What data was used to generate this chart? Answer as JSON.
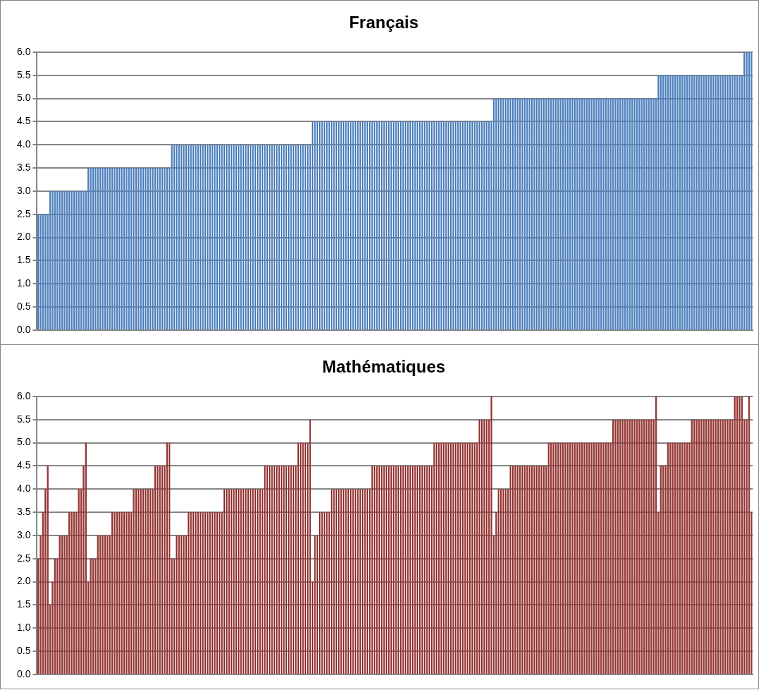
{
  "chart_data": [
    {
      "type": "bar",
      "title": "Français",
      "color": "#4f81bd",
      "grid": "y",
      "tick_labels": "y",
      "ylim": [
        0,
        6
      ],
      "yticks": [
        {
          "value": 0,
          "label": "0.0"
        },
        {
          "value": 0.5,
          "label": "0.5"
        },
        {
          "value": 1,
          "label": "1.0"
        },
        {
          "value": 1.5,
          "label": "1.5"
        },
        {
          "value": 2,
          "label": "2.0"
        },
        {
          "value": 2.5,
          "label": "2.5"
        },
        {
          "value": 3,
          "label": "3.0"
        },
        {
          "value": 3.5,
          "label": "3.5"
        },
        {
          "value": 4,
          "label": "4.0"
        },
        {
          "value": 4.5,
          "label": "4.5"
        },
        {
          "value": 5,
          "label": "5.0"
        },
        {
          "value": 5.5,
          "label": "5.5"
        },
        {
          "value": 6,
          "label": "6.0"
        }
      ],
      "categories": [
        null,
        null,
        null,
        null,
        null,
        null,
        null,
        null,
        null,
        null,
        null,
        null,
        null,
        null,
        null,
        null,
        null,
        null,
        null,
        null,
        null,
        null,
        null,
        null,
        null,
        null,
        null,
        null,
        null,
        null,
        null,
        null,
        null,
        null,
        null,
        null,
        null,
        null,
        null,
        null,
        null,
        null,
        null,
        null,
        null,
        null,
        null,
        null,
        null,
        null,
        null,
        null,
        null,
        null,
        null,
        null,
        null,
        null,
        null,
        null,
        null,
        null,
        null,
        null,
        null,
        null,
        null,
        null,
        null,
        null,
        null,
        null,
        null,
        null,
        null,
        null,
        null,
        null,
        null,
        null,
        null,
        null,
        null,
        null,
        null,
        null,
        null,
        null,
        null,
        null,
        null,
        null,
        null,
        null,
        null,
        null,
        null,
        null,
        null,
        null,
        null,
        null,
        null,
        null,
        null,
        null,
        null,
        null,
        null,
        null,
        null,
        null,
        null,
        null,
        null,
        null,
        null,
        null,
        null,
        null,
        null,
        null,
        null,
        null,
        null,
        null,
        null,
        null,
        null,
        null,
        null,
        null,
        null,
        null,
        null,
        null,
        null,
        null,
        null,
        null,
        null,
        null,
        null,
        null,
        null,
        null,
        null,
        null,
        null,
        null,
        null,
        null,
        null,
        null,
        null,
        null,
        null,
        null,
        null,
        null,
        null,
        null,
        null,
        null,
        null,
        null,
        null,
        null,
        null,
        null,
        null,
        null,
        null,
        null,
        null,
        null,
        null,
        null,
        null,
        null,
        null,
        null,
        null,
        null,
        null,
        null,
        null,
        null,
        null,
        null,
        null,
        null,
        null,
        null,
        null,
        null,
        null,
        null,
        null,
        null,
        null,
        null,
        null,
        null,
        null,
        null,
        null,
        null,
        null,
        null,
        null,
        null,
        null,
        null,
        null,
        null,
        null,
        null,
        null,
        null,
        null,
        null,
        null,
        null,
        null,
        null,
        null,
        null,
        null,
        null,
        null,
        null,
        null,
        null,
        null,
        null,
        null,
        null,
        null,
        null,
        null,
        null,
        null,
        null,
        null,
        null,
        null,
        null,
        null,
        null,
        null,
        null,
        null,
        null,
        null,
        null,
        null,
        null,
        null,
        null,
        null,
        null,
        null,
        null,
        null,
        null,
        null,
        null,
        null,
        null,
        null,
        null,
        null,
        null,
        null,
        null,
        null,
        null,
        null,
        null,
        null,
        null,
        null,
        null,
        null,
        null,
        null,
        null,
        null,
        null,
        null,
        null,
        null,
        null,
        null,
        null,
        null,
        null,
        null,
        null
      ],
      "values": [
        2.5,
        2.5,
        2.5,
        2.5,
        2.5,
        3,
        3,
        3,
        3,
        3,
        3,
        3,
        3,
        3,
        3,
        3,
        3,
        3,
        3,
        3,
        3,
        3.5,
        3.5,
        3.5,
        3.5,
        3.5,
        3.5,
        3.5,
        3.5,
        3.5,
        3.5,
        3.5,
        3.5,
        3.5,
        3.5,
        3.5,
        3.5,
        3.5,
        3.5,
        3.5,
        3.5,
        3.5,
        3.5,
        3.5,
        3.5,
        3.5,
        3.5,
        3.5,
        3.5,
        3.5,
        3.5,
        3.5,
        3.5,
        3.5,
        3.5,
        3.5,
        4,
        4,
        4,
        4,
        4,
        4,
        4,
        4,
        4,
        4,
        4,
        4,
        4,
        4,
        4,
        4,
        4,
        4,
        4,
        4,
        4,
        4,
        4,
        4,
        4,
        4,
        4,
        4,
        4,
        4,
        4,
        4,
        4,
        4,
        4,
        4,
        4,
        4,
        4,
        4,
        4,
        4,
        4,
        4,
        4,
        4,
        4,
        4,
        4,
        4,
        4,
        4,
        4,
        4,
        4,
        4,
        4,
        4,
        4,
        4.5,
        4.5,
        4.5,
        4.5,
        4.5,
        4.5,
        4.5,
        4.5,
        4.5,
        4.5,
        4.5,
        4.5,
        4.5,
        4.5,
        4.5,
        4.5,
        4.5,
        4.5,
        4.5,
        4.5,
        4.5,
        4.5,
        4.5,
        4.5,
        4.5,
        4.5,
        4.5,
        4.5,
        4.5,
        4.5,
        4.5,
        4.5,
        4.5,
        4.5,
        4.5,
        4.5,
        4.5,
        4.5,
        4.5,
        4.5,
        4.5,
        4.5,
        4.5,
        4.5,
        4.5,
        4.5,
        4.5,
        4.5,
        4.5,
        4.5,
        4.5,
        4.5,
        4.5,
        4.5,
        4.5,
        4.5,
        4.5,
        4.5,
        4.5,
        4.5,
        4.5,
        4.5,
        4.5,
        4.5,
        4.5,
        4.5,
        4.5,
        4.5,
        4.5,
        4.5,
        4.5,
        4.5,
        4.5,
        4.5,
        4.5,
        4.5,
        5,
        5,
        5,
        5,
        5,
        5,
        5,
        5,
        5,
        5,
        5,
        5,
        5,
        5,
        5,
        5,
        5,
        5,
        5,
        5,
        5,
        5,
        5,
        5,
        5,
        5,
        5,
        5,
        5,
        5,
        5,
        5,
        5,
        5,
        5,
        5,
        5,
        5,
        5,
        5,
        5,
        5,
        5,
        5,
        5,
        5,
        5,
        5,
        5,
        5,
        5,
        5,
        5,
        5,
        5,
        5,
        5,
        5,
        5,
        5,
        5,
        5,
        5,
        5,
        5,
        5,
        5,
        5,
        5,
        5.5,
        5.5,
        5.5,
        5.5,
        5.5,
        5.5,
        5.5,
        5.5,
        5.5,
        5.5,
        5.5,
        5.5,
        5.5,
        5.5,
        5.5,
        5.5,
        5.5,
        5.5,
        5.5,
        5.5,
        5.5,
        5.5,
        5.5,
        5.5,
        5.5,
        5.5,
        5.5,
        5.5,
        5.5,
        5.5,
        5.5,
        5.5,
        5.5,
        5.5,
        5.5,
        5.5,
        6,
        6,
        6,
        6
      ]
    },
    {
      "type": "bar",
      "title": "Mathématiques",
      "color": "#953735",
      "grid": "y",
      "tick_labels": "y",
      "ylim": [
        0,
        6
      ],
      "yticks": [
        {
          "value": 0,
          "label": "0.0"
        },
        {
          "value": 0.5,
          "label": "0.5"
        },
        {
          "value": 1,
          "label": "1.0"
        },
        {
          "value": 1.5,
          "label": "1.5"
        },
        {
          "value": 2,
          "label": "2.0"
        },
        {
          "value": 2.5,
          "label": "2.5"
        },
        {
          "value": 3,
          "label": "3.0"
        },
        {
          "value": 3.5,
          "label": "3.5"
        },
        {
          "value": 4,
          "label": "4.0"
        },
        {
          "value": 4.5,
          "label": "4.5"
        },
        {
          "value": 5,
          "label": "5.0"
        },
        {
          "value": 5.5,
          "label": "5.5"
        },
        {
          "value": 6,
          "label": "6.0"
        }
      ],
      "categories": [
        null,
        null,
        null,
        null,
        null,
        null,
        null,
        null,
        null,
        null,
        null,
        null,
        null,
        null,
        null,
        null,
        null,
        null,
        null,
        null,
        null,
        null,
        null,
        null,
        null,
        null,
        null,
        null,
        null,
        null,
        null,
        null,
        null,
        null,
        null,
        null,
        null,
        null,
        null,
        null,
        null,
        null,
        null,
        null,
        null,
        null,
        null,
        null,
        null,
        null,
        null,
        null,
        null,
        null,
        null,
        null,
        null,
        null,
        null,
        null,
        null,
        null,
        null,
        null,
        null,
        null,
        null,
        null,
        null,
        null,
        null,
        null,
        null,
        null,
        null,
        null,
        null,
        null,
        null,
        null,
        null,
        null,
        null,
        null,
        null,
        null,
        null,
        null,
        null,
        null,
        null,
        null,
        null,
        null,
        null,
        null,
        null,
        null,
        null,
        null,
        null,
        null,
        null,
        null,
        null,
        null,
        null,
        null,
        null,
        null,
        null,
        null,
        null,
        null,
        null,
        null,
        null,
        null,
        null,
        null,
        null,
        null,
        null,
        null,
        null,
        null,
        null,
        null,
        null,
        null,
        null,
        null,
        null,
        null,
        null,
        null,
        null,
        null,
        null,
        null,
        null,
        null,
        null,
        null,
        null,
        null,
        null,
        null,
        null,
        null,
        null,
        null,
        null,
        null,
        null,
        null,
        null,
        null,
        null,
        null,
        null,
        null,
        null,
        null,
        null,
        null,
        null,
        null,
        null,
        null,
        null,
        null,
        null,
        null,
        null,
        null,
        null,
        null,
        null,
        null,
        null,
        null,
        null,
        null,
        null,
        null,
        null,
        null,
        null,
        null,
        null,
        null,
        null,
        null,
        null,
        null,
        null,
        null,
        null,
        null,
        null,
        null,
        null,
        null,
        null,
        null,
        null,
        null,
        null,
        null,
        null,
        null,
        null,
        null,
        null,
        null,
        null,
        null,
        null,
        null,
        null,
        null,
        null,
        null,
        null,
        null,
        null,
        null,
        null,
        null,
        null,
        null,
        null,
        null,
        null,
        null,
        null,
        null,
        null,
        null,
        null,
        null,
        null,
        null,
        null,
        null,
        null,
        null,
        null,
        null,
        null,
        null,
        null,
        null,
        null,
        null,
        null,
        null,
        null,
        null,
        null,
        null,
        null,
        null,
        null,
        null,
        null,
        null,
        null,
        null,
        null,
        null,
        null,
        null,
        null,
        null,
        null,
        null,
        null,
        null,
        null,
        null,
        null,
        null,
        null,
        null,
        null,
        null,
        null,
        null,
        null,
        null,
        null,
        null,
        null,
        null,
        null,
        null,
        null,
        null
      ],
      "values": [
        2.5,
        3,
        3.5,
        4,
        4.5,
        1.5,
        2,
        2.5,
        2.5,
        3,
        3,
        3,
        3,
        3.5,
        3.5,
        3.5,
        3.5,
        4,
        4,
        4.5,
        5,
        2,
        2.5,
        2.5,
        2.5,
        3,
        3,
        3,
        3,
        3,
        3,
        3.5,
        3.5,
        3.5,
        3.5,
        3.5,
        3.5,
        3.5,
        3.5,
        3.5,
        4,
        4,
        4,
        4,
        4,
        4,
        4,
        4,
        4,
        4.5,
        4.5,
        4.5,
        4.5,
        4.5,
        5,
        5,
        2.5,
        2.5,
        3,
        3,
        3,
        3,
        3,
        3.5,
        3.5,
        3.5,
        3.5,
        3.5,
        3.5,
        3.5,
        3.5,
        3.5,
        3.5,
        3.5,
        3.5,
        3.5,
        3.5,
        3.5,
        4,
        4,
        4,
        4,
        4,
        4,
        4,
        4,
        4,
        4,
        4,
        4,
        4,
        4,
        4,
        4,
        4,
        4.5,
        4.5,
        4.5,
        4.5,
        4.5,
        4.5,
        4.5,
        4.5,
        4.5,
        4.5,
        4.5,
        4.5,
        4.5,
        4.5,
        5,
        5,
        5,
        5,
        5,
        5.5,
        2,
        3,
        3,
        3.5,
        3.5,
        3.5,
        3.5,
        3.5,
        4,
        4,
        4,
        4,
        4,
        4,
        4,
        4,
        4,
        4,
        4,
        4,
        4,
        4,
        4,
        4,
        4,
        4.5,
        4.5,
        4.5,
        4.5,
        4.5,
        4.5,
        4.5,
        4.5,
        4.5,
        4.5,
        4.5,
        4.5,
        4.5,
        4.5,
        4.5,
        4.5,
        4.5,
        4.5,
        4.5,
        4.5,
        4.5,
        4.5,
        4.5,
        4.5,
        4.5,
        4.5,
        5,
        5,
        5,
        5,
        5,
        5,
        5,
        5,
        5,
        5,
        5,
        5,
        5,
        5,
        5,
        5,
        5,
        5,
        5,
        5.5,
        5.5,
        5.5,
        5.5,
        5.5,
        6,
        3,
        3.5,
        4,
        4,
        4,
        4,
        4,
        4.5,
        4.5,
        4.5,
        4.5,
        4.5,
        4.5,
        4.5,
        4.5,
        4.5,
        4.5,
        4.5,
        4.5,
        4.5,
        4.5,
        4.5,
        4.5,
        5,
        5,
        5,
        5,
        5,
        5,
        5,
        5,
        5,
        5,
        5,
        5,
        5,
        5,
        5,
        5,
        5,
        5,
        5,
        5,
        5,
        5,
        5,
        5,
        5,
        5,
        5,
        5.5,
        5.5,
        5.5,
        5.5,
        5.5,
        5.5,
        5.5,
        5.5,
        5.5,
        5.5,
        5.5,
        5.5,
        5.5,
        5.5,
        5.5,
        5.5,
        5.5,
        5.5,
        6,
        3.5,
        4.5,
        4.5,
        4.5,
        5,
        5,
        5,
        5,
        5,
        5,
        5,
        5,
        5,
        5,
        5.5,
        5.5,
        5.5,
        5.5,
        5.5,
        5.5,
        5.5,
        5.5,
        5.5,
        5.5,
        5.5,
        5.5,
        5.5,
        5.5,
        5.5,
        5.5,
        5.5,
        5.5,
        6,
        6,
        6,
        6,
        5.5,
        5.5,
        6,
        3.5
      ]
    }
  ]
}
